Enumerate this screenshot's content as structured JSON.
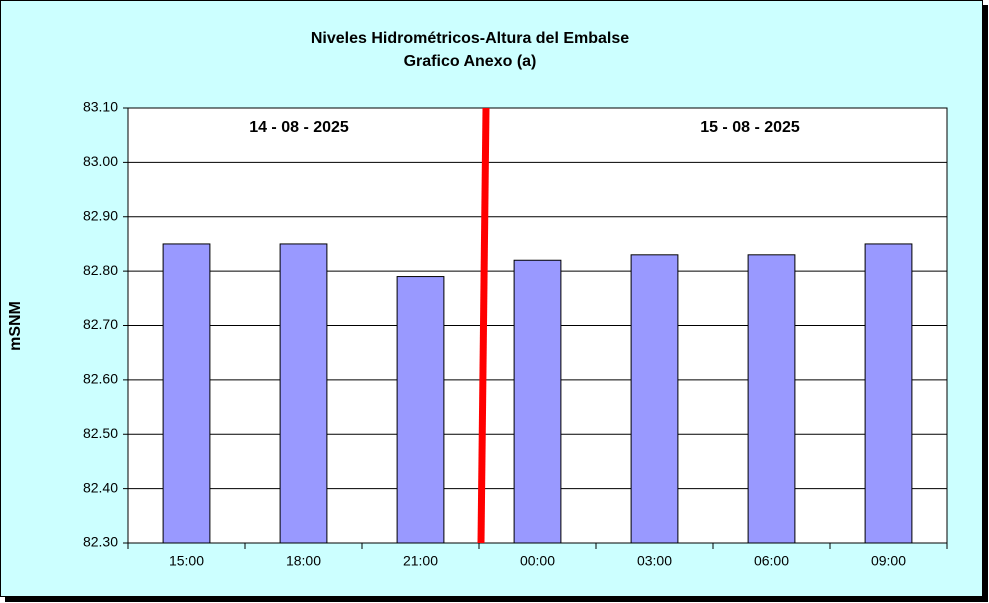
{
  "chart_data": {
    "type": "bar",
    "title": "Niveles Hidrométricos-Altura del Embalse",
    "subtitle": "Grafico Anexo (a)",
    "y_label": "mSNM",
    "annotations": [
      "14 - 08 - 2025",
      "15 - 08 - 2025"
    ],
    "categories": [
      "15:00",
      "18:00",
      "21:00",
      "00:00",
      "03:00",
      "06:00",
      "09:00"
    ],
    "values": [
      82.85,
      82.85,
      82.79,
      82.82,
      82.83,
      82.83,
      82.85
    ],
    "color": "#9999ff",
    "ylim": [
      82.3,
      83.1
    ],
    "yticks": [
      {
        "value": 82.3,
        "label": "82.30"
      },
      {
        "value": 82.4,
        "label": "82.40"
      },
      {
        "value": 82.5,
        "label": "82.50"
      },
      {
        "value": 82.6,
        "label": "82.60"
      },
      {
        "value": 82.7,
        "label": "82.70"
      },
      {
        "value": 82.8,
        "label": "82.80"
      },
      {
        "value": 82.9,
        "label": "82.90"
      },
      {
        "value": 83.0,
        "label": "83.00"
      },
      {
        "value": 83.1,
        "label": "83.10"
      }
    ],
    "grid": true
  }
}
